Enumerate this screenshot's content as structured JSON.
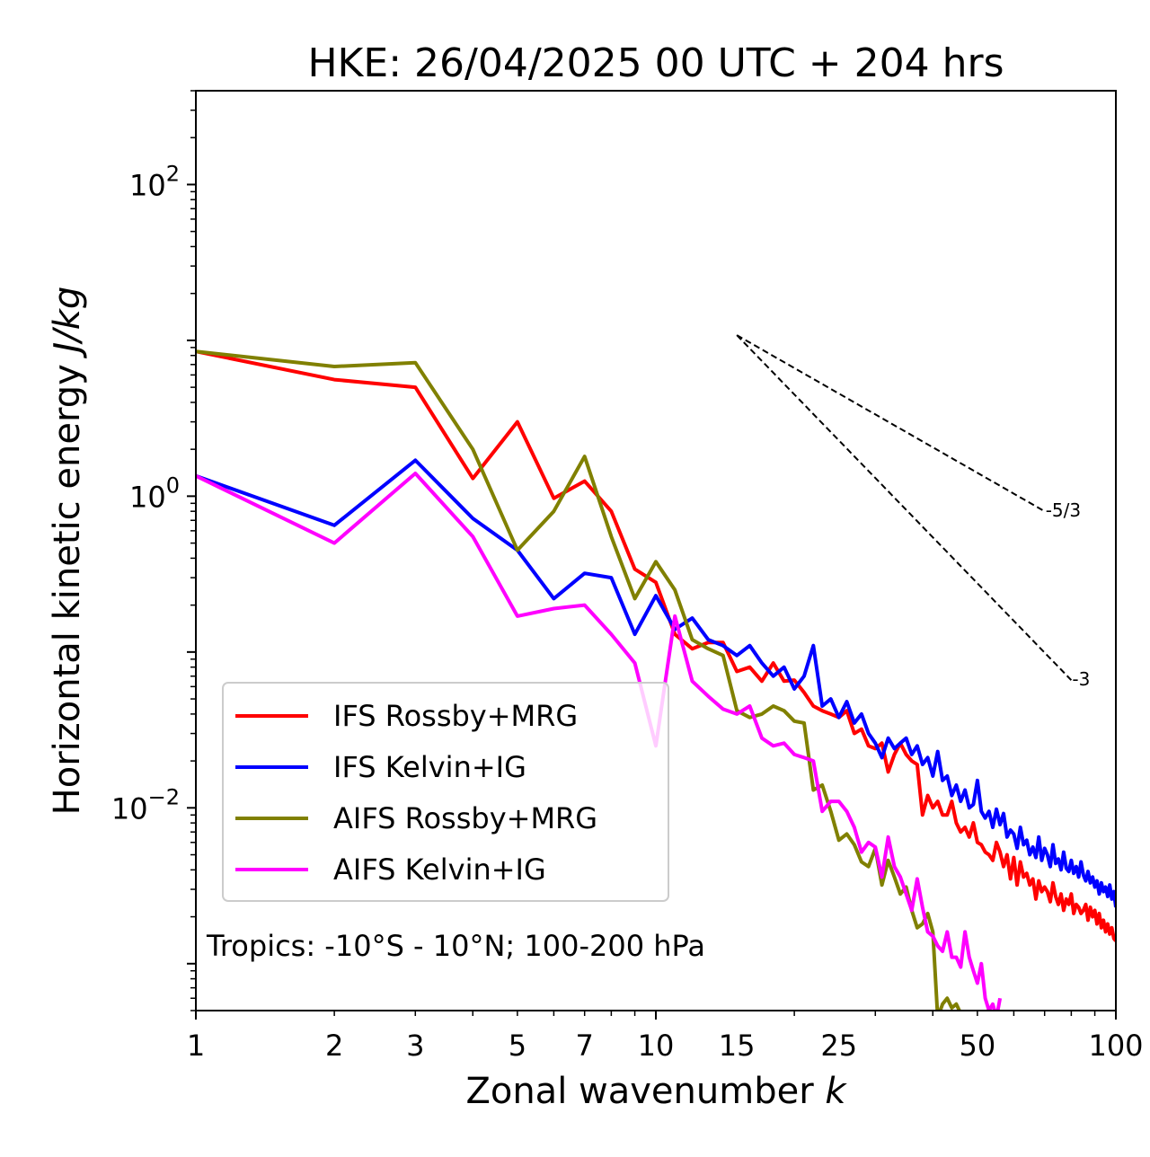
{
  "chart_data": {
    "type": "line",
    "title": "HKE: 26/04/2025 00 UTC + 204 hrs",
    "xlabel_text": "Zonal wavenumber ",
    "xlabel_italic": "k",
    "ylabel_text": "Horizontal kinetic energy ",
    "ylabel_italic": "J/kg",
    "x_scale": "log",
    "y_scale": "log",
    "xlim": [
      1,
      100
    ],
    "ylim": [
      0.0005,
      400
    ],
    "x_ticks": [
      {
        "value": 1,
        "label": "1"
      },
      {
        "value": 2,
        "label": "2"
      },
      {
        "value": 3,
        "label": "3"
      },
      {
        "value": 5,
        "label": "5"
      },
      {
        "value": 7,
        "label": "7"
      },
      {
        "value": 10,
        "label": "10"
      },
      {
        "value": 15,
        "label": "15"
      },
      {
        "value": 25,
        "label": "25"
      },
      {
        "value": 50,
        "label": "50"
      },
      {
        "value": 100,
        "label": "100"
      }
    ],
    "y_ticks": [
      {
        "value": 0.01,
        "base": "10",
        "exp": "−2"
      },
      {
        "value": 1,
        "base": "10",
        "exp": "0"
      },
      {
        "value": 100,
        "base": "10",
        "exp": "2"
      }
    ],
    "grid": false,
    "legend_position": "lower-left",
    "annotation": "Tropics: -10°S - 10°N; 100-200 hPa",
    "reference_lines": [
      {
        "label": "-5/3",
        "x": [
          15,
          70
        ],
        "y": [
          10.8,
          0.8
        ],
        "style": "dashed"
      },
      {
        "label": "-3",
        "x": [
          15,
          80
        ],
        "y": [
          10.8,
          0.066
        ],
        "style": "dashed"
      }
    ],
    "series": [
      {
        "name": "IFS Rossby+MRG",
        "color": "#ff0000",
        "x": [
          1,
          2,
          3,
          4,
          5,
          6,
          7,
          8,
          9,
          10,
          11,
          12,
          13,
          14,
          15,
          16,
          17,
          18,
          19,
          20,
          21,
          22,
          23,
          24,
          25,
          26,
          27,
          28,
          29,
          30,
          31,
          32,
          33,
          34,
          35,
          36,
          37,
          38,
          39,
          40,
          41,
          42,
          43,
          44,
          45,
          46,
          47,
          48,
          49,
          50,
          51,
          52,
          53,
          54,
          55,
          56,
          57,
          58,
          59,
          60,
          61,
          62,
          63,
          64,
          65,
          66,
          67,
          68,
          69,
          70,
          71,
          72,
          73,
          74,
          75,
          76,
          77,
          78,
          79,
          80,
          81,
          82,
          83,
          84,
          85,
          86,
          87,
          88,
          89,
          90,
          91,
          92,
          93,
          94,
          95,
          96,
          97,
          98,
          99,
          100
        ],
        "y": [
          8.5,
          5.6,
          5.0,
          1.3,
          3.0,
          0.97,
          1.25,
          0.8,
          0.34,
          0.28,
          0.13,
          0.105,
          0.115,
          0.115,
          0.075,
          0.08,
          0.065,
          0.085,
          0.065,
          0.066,
          0.055,
          0.045,
          0.042,
          0.04,
          0.038,
          0.042,
          0.03,
          0.032,
          0.025,
          0.024,
          0.026,
          0.017,
          0.022,
          0.026,
          0.022,
          0.02,
          0.019,
          0.009,
          0.012,
          0.01,
          0.011,
          0.009,
          0.009,
          0.011,
          0.008,
          0.007,
          0.0075,
          0.0065,
          0.008,
          0.006,
          0.0058,
          0.0052,
          0.005,
          0.0046,
          0.006,
          0.0052,
          0.0042,
          0.005,
          0.0035,
          0.0048,
          0.0032,
          0.0045,
          0.0036,
          0.0038,
          0.0032,
          0.0035,
          0.0026,
          0.0034,
          0.0029,
          0.0031,
          0.0029,
          0.0025,
          0.0033,
          0.0027,
          0.0024,
          0.0028,
          0.0022,
          0.0026,
          0.0024,
          0.0028,
          0.0021,
          0.0024,
          0.0023,
          0.0021,
          0.0022,
          0.0024,
          0.0019,
          0.0023,
          0.002,
          0.0022,
          0.0018,
          0.0021,
          0.0017,
          0.0019,
          0.0016,
          0.0018,
          0.00155,
          0.0017,
          0.00145,
          0.0014
        ]
      },
      {
        "name": "IFS Kelvin+IG",
        "color": "#0000ff",
        "x": [
          1,
          2,
          3,
          4,
          5,
          6,
          7,
          8,
          9,
          10,
          11,
          12,
          13,
          14,
          15,
          16,
          17,
          18,
          19,
          20,
          21,
          22,
          23,
          24,
          25,
          26,
          27,
          28,
          29,
          30,
          31,
          32,
          33,
          34,
          35,
          36,
          37,
          38,
          39,
          40,
          41,
          42,
          43,
          44,
          45,
          46,
          47,
          48,
          49,
          50,
          51,
          52,
          53,
          54,
          55,
          56,
          57,
          58,
          59,
          60,
          61,
          62,
          63,
          64,
          65,
          66,
          67,
          68,
          69,
          70,
          71,
          72,
          73,
          74,
          75,
          76,
          77,
          78,
          79,
          80,
          81,
          82,
          83,
          84,
          85,
          86,
          87,
          88,
          89,
          90,
          91,
          92,
          93,
          94,
          95,
          96,
          97,
          98,
          99,
          100
        ],
        "y": [
          1.35,
          0.65,
          1.7,
          0.72,
          0.45,
          0.22,
          0.32,
          0.3,
          0.13,
          0.23,
          0.14,
          0.165,
          0.12,
          0.11,
          0.095,
          0.11,
          0.085,
          0.07,
          0.08,
          0.058,
          0.07,
          0.11,
          0.045,
          0.05,
          0.038,
          0.048,
          0.035,
          0.04,
          0.03,
          0.026,
          0.021,
          0.028,
          0.024,
          0.026,
          0.028,
          0.022,
          0.025,
          0.019,
          0.021,
          0.016,
          0.023,
          0.015,
          0.016,
          0.012,
          0.014,
          0.011,
          0.013,
          0.01,
          0.0105,
          0.015,
          0.0095,
          0.0086,
          0.0095,
          0.0075,
          0.0098,
          0.0078,
          0.0092,
          0.0065,
          0.0072,
          0.0068,
          0.0055,
          0.0075,
          0.0058,
          0.0062,
          0.005,
          0.0056,
          0.0048,
          0.0065,
          0.0046,
          0.0055,
          0.005,
          0.0042,
          0.0058,
          0.0044,
          0.0047,
          0.004,
          0.0052,
          0.0041,
          0.0039,
          0.0046,
          0.0038,
          0.0042,
          0.0036,
          0.0045,
          0.0037,
          0.0034,
          0.0039,
          0.0033,
          0.0036,
          0.0031,
          0.0034,
          0.0028,
          0.0033,
          0.0029,
          0.0031,
          0.0027,
          0.0032,
          0.0026,
          0.0029,
          0.0023
        ]
      },
      {
        "name": "AIFS Rossby+MRG",
        "color": "#808000",
        "x": [
          1,
          2,
          3,
          4,
          5,
          6,
          7,
          8,
          9,
          10,
          11,
          12,
          13,
          14,
          15,
          16,
          17,
          18,
          19,
          20,
          21,
          22,
          23,
          24,
          25,
          26,
          27,
          28,
          29,
          30,
          31,
          32,
          33,
          34,
          35,
          36,
          37,
          38,
          39,
          40,
          41,
          42,
          43,
          44,
          45,
          46
        ],
        "y": [
          8.5,
          6.8,
          7.2,
          2.0,
          0.45,
          0.8,
          1.8,
          0.55,
          0.22,
          0.38,
          0.25,
          0.12,
          0.105,
          0.095,
          0.042,
          0.038,
          0.04,
          0.045,
          0.042,
          0.036,
          0.035,
          0.013,
          0.014,
          0.0095,
          0.0062,
          0.0068,
          0.0058,
          0.0045,
          0.0042,
          0.0055,
          0.0032,
          0.0046,
          0.0036,
          0.0028,
          0.0031,
          0.0022,
          0.0017,
          0.0018,
          0.0021,
          0.0016,
          0.00045,
          0.00055,
          0.0006,
          0.00052,
          0.00055,
          0.00048
        ]
      },
      {
        "name": "AIFS Kelvin+IG",
        "color": "#ff00ff",
        "x": [
          1,
          2,
          3,
          4,
          5,
          6,
          7,
          8,
          9,
          10,
          11,
          12,
          13,
          14,
          15,
          16,
          17,
          18,
          19,
          20,
          21,
          22,
          23,
          24,
          25,
          26,
          27,
          28,
          29,
          30,
          31,
          32,
          33,
          34,
          35,
          36,
          37,
          38,
          39,
          40,
          41,
          42,
          43,
          44,
          45,
          46,
          47,
          48,
          49,
          50,
          51,
          52,
          53,
          54,
          55,
          56
        ],
        "y": [
          1.35,
          0.5,
          1.4,
          0.55,
          0.17,
          0.19,
          0.2,
          0.13,
          0.085,
          0.025,
          0.17,
          0.065,
          0.052,
          0.043,
          0.04,
          0.045,
          0.028,
          0.025,
          0.026,
          0.022,
          0.021,
          0.02,
          0.0095,
          0.011,
          0.011,
          0.0095,
          0.0075,
          0.0052,
          0.006,
          0.0056,
          0.0036,
          0.0065,
          0.0042,
          0.0036,
          0.0028,
          0.0022,
          0.0035,
          0.0023,
          0.0016,
          0.0015,
          0.0013,
          0.0012,
          0.0016,
          0.0011,
          0.0011,
          0.00095,
          0.0016,
          0.0011,
          0.0009,
          0.00075,
          0.001,
          0.0006,
          0.0005,
          0.00055,
          0.00045,
          0.0006
        ]
      }
    ]
  }
}
